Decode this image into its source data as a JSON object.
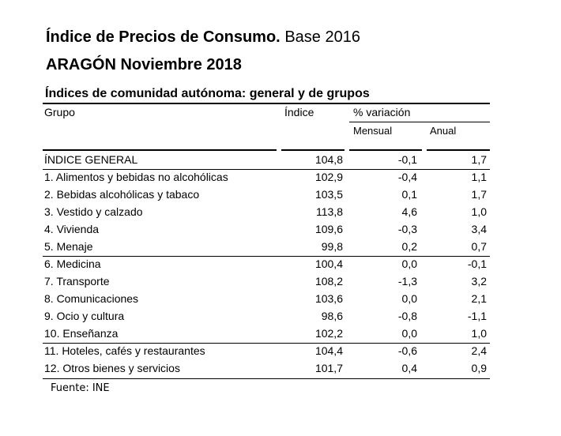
{
  "title": {
    "bold": "Índice de Precios de Consumo.",
    "normal": "Base 2016"
  },
  "subtitle1": "ARAGÓN Noviembre 2018",
  "subtitle2": "Índices de comunidad autónoma: general y de grupos",
  "headers": {
    "grupo": "Grupo",
    "indice": "Índice",
    "variacion": "% variación",
    "mensual": "Mensual",
    "anual": "Anual"
  },
  "rows": [
    {
      "grupo": "ÍNDICE GENERAL",
      "indice": "104,8",
      "mensual": "-0,1",
      "anual": "1,7"
    },
    {
      "grupo": "1. Alimentos y bebidas no alcohólicas",
      "indice": "102,9",
      "mensual": "-0,4",
      "anual": "1,1"
    },
    {
      "grupo": "2. Bebidas alcohólicas y tabaco",
      "indice": "103,5",
      "mensual": "0,1",
      "anual": "1,7"
    },
    {
      "grupo": "3. Vestido y calzado",
      "indice": "113,8",
      "mensual": "4,6",
      "anual": "1,0"
    },
    {
      "grupo": "4. Vivienda",
      "indice": "109,6",
      "mensual": "-0,3",
      "anual": "3,4"
    },
    {
      "grupo": "5. Menaje",
      "indice": "99,8",
      "mensual": "0,2",
      "anual": "0,7"
    },
    {
      "grupo": "6. Medicina",
      "indice": "100,4",
      "mensual": "0,0",
      "anual": "-0,1"
    },
    {
      "grupo": "7. Transporte",
      "indice": "108,2",
      "mensual": "-1,3",
      "anual": "3,2"
    },
    {
      "grupo": "8. Comunicaciones",
      "indice": "103,6",
      "mensual": "0,0",
      "anual": "2,1"
    },
    {
      "grupo": "9. Ocio y cultura",
      "indice": "98,6",
      "mensual": "-0,8",
      "anual": "-1,1"
    },
    {
      "grupo": "10. Enseñanza",
      "indice": "102,2",
      "mensual": "0,0",
      "anual": "1,0"
    },
    {
      "grupo": "11. Hoteles, cafés y restaurantes",
      "indice": "104,4",
      "mensual": "-0,6",
      "anual": "2,4"
    },
    {
      "grupo": "12. Otros bienes y servicios",
      "indice": "101,7",
      "mensual": "0,4",
      "anual": "0,9"
    }
  ],
  "source": "Fuente: INE"
}
